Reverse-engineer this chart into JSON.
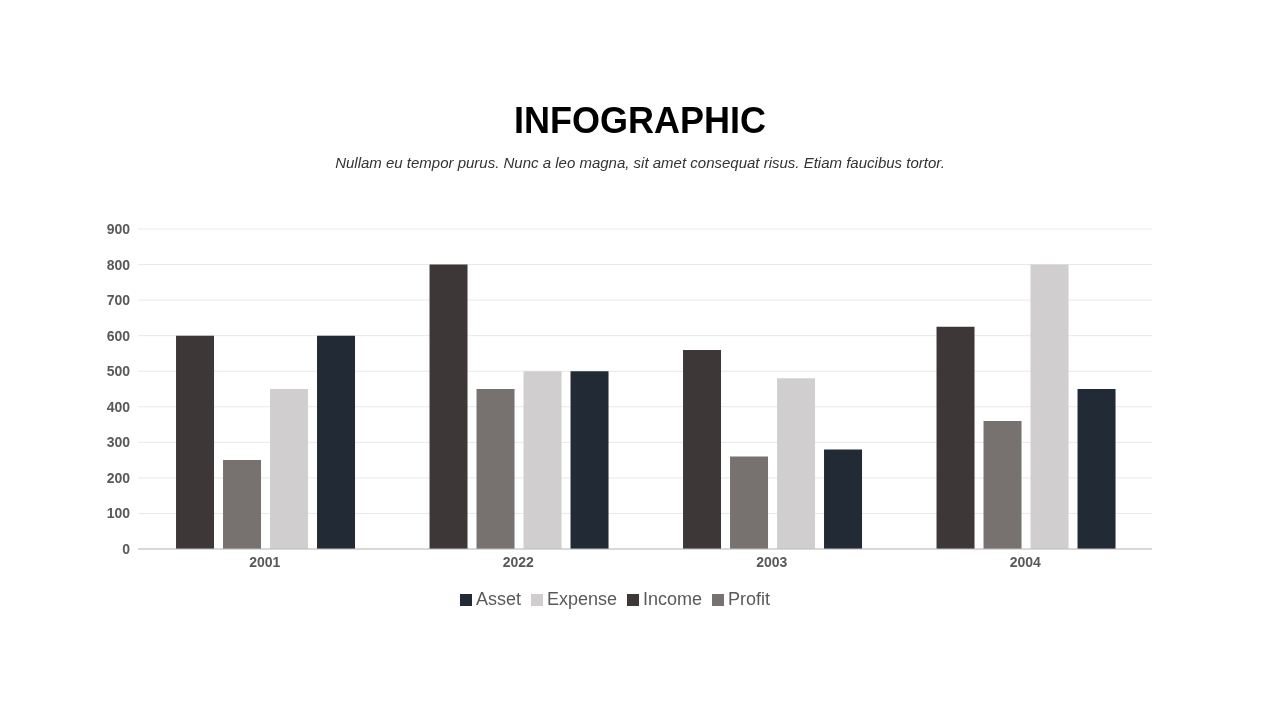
{
  "chart_data": {
    "type": "bar",
    "title": "INFOGRAPHIC",
    "subtitle": "Nullam eu tempor purus. Nunc a leo magna, sit amet consequat risus. Etiam faucibus tortor.",
    "categories": [
      "2001",
      "2022",
      "2003",
      "2004"
    ],
    "series": [
      {
        "name": "Income",
        "color": "#3d3837",
        "values": [
          600,
          800,
          560,
          625
        ]
      },
      {
        "name": "Profit",
        "color": "#777170",
        "values": [
          250,
          450,
          260,
          360
        ]
      },
      {
        "name": "Expense",
        "color": "#d0cece",
        "values": [
          450,
          500,
          480,
          800
        ]
      },
      {
        "name": "Asset",
        "color": "#222a35",
        "values": [
          600,
          500,
          280,
          450
        ]
      }
    ],
    "ylim": [
      0,
      900
    ],
    "yticks": [
      0,
      100,
      200,
      300,
      400,
      500,
      600,
      700,
      800,
      900
    ],
    "grid": "y",
    "legend": "bottom"
  }
}
